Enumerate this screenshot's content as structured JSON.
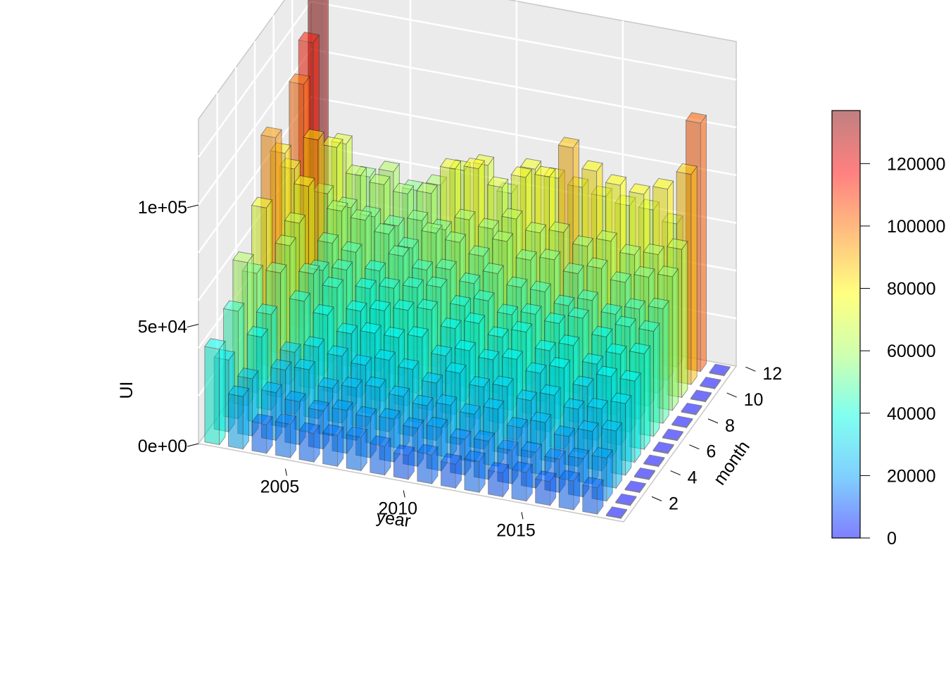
{
  "chart_data": {
    "type": "bar3d",
    "xlabel": "year",
    "ylabel": "month",
    "zlabel": "UI",
    "x_ticks": [
      "2005",
      "2010",
      "2015"
    ],
    "y_ticks": [
      "2",
      "4",
      "6",
      "8",
      "10",
      "12"
    ],
    "z_ticks": [
      "0e+00",
      "5e+04",
      "1e+05"
    ],
    "z_range": [
      0,
      137000
    ],
    "years": [
      2002,
      2003,
      2004,
      2005,
      2006,
      2007,
      2008,
      2009,
      2010,
      2011,
      2012,
      2013,
      2014,
      2015,
      2016,
      2017,
      2018,
      2019
    ],
    "months": [
      1,
      2,
      3,
      4,
      5,
      6,
      7,
      8,
      9,
      10,
      11,
      12
    ],
    "values": [
      [
        40000,
        30000,
        45000,
        60000,
        50000,
        72000,
        96000,
        84000,
        72000,
        102000,
        114000,
        136000
      ],
      [
        22000,
        24000,
        36000,
        40000,
        52000,
        58000,
        62000,
        72000,
        86000,
        58000,
        72000,
        68000
      ],
      [
        12000,
        20000,
        24000,
        26000,
        42000,
        48000,
        44000,
        50000,
        58000,
        54000,
        62000,
        56000
      ],
      [
        14000,
        18000,
        26000,
        30000,
        38000,
        44000,
        46000,
        48000,
        56000,
        52000,
        60000,
        60000
      ],
      [
        12000,
        16000,
        20000,
        28000,
        32000,
        36000,
        40000,
        42000,
        52000,
        50000,
        58000,
        54000
      ],
      [
        13000,
        18000,
        22000,
        26000,
        34000,
        38000,
        42000,
        50000,
        48000,
        54000,
        60000,
        58000
      ],
      [
        14000,
        17000,
        24000,
        30000,
        34000,
        40000,
        44000,
        46000,
        56000,
        52000,
        72000,
        66000
      ],
      [
        12000,
        18000,
        22000,
        28000,
        36000,
        42000,
        46000,
        48000,
        54000,
        58000,
        74000,
        70000
      ],
      [
        10000,
        16000,
        20000,
        24000,
        30000,
        36000,
        40000,
        44000,
        50000,
        56000,
        68000,
        60000
      ],
      [
        12000,
        18000,
        22000,
        30000,
        34000,
        40000,
        44000,
        50000,
        58000,
        62000,
        74000,
        72000
      ],
      [
        10000,
        15000,
        20000,
        26000,
        32000,
        36000,
        40000,
        46000,
        52000,
        58000,
        76000,
        70000
      ],
      [
        13000,
        16000,
        24000,
        28000,
        34000,
        40000,
        42000,
        46000,
        54000,
        60000,
        90000,
        68000
      ],
      [
        10000,
        14000,
        18000,
        24000,
        30000,
        34000,
        40000,
        42000,
        50000,
        56000,
        82000,
        66000
      ],
      [
        12000,
        15000,
        22000,
        28000,
        34000,
        38000,
        44000,
        46000,
        54000,
        60000,
        78000,
        64000
      ],
      [
        10000,
        14000,
        18000,
        24000,
        28000,
        32000,
        38000,
        42000,
        50000,
        56000,
        76000,
        64000
      ],
      [
        12000,
        16000,
        22000,
        26000,
        34000,
        38000,
        44000,
        46000,
        54000,
        58000,
        80000,
        60000
      ],
      [
        11000,
        18000,
        24000,
        30000,
        34000,
        40000,
        44000,
        48000,
        56000,
        62000,
        88000,
        104000
      ],
      [
        0,
        0,
        0,
        0,
        0,
        0,
        0,
        0,
        0,
        0,
        0,
        0
      ]
    ],
    "colorbar": {
      "ticks": [
        "0",
        "20000",
        "40000",
        "60000",
        "80000",
        "100000",
        "120000"
      ],
      "range": [
        0,
        137000
      ],
      "colors": [
        "#0000ff",
        "#00a0ff",
        "#00ffe0",
        "#a0ff60",
        "#ffff00",
        "#ff8000",
        "#ff0000",
        "#800000"
      ]
    }
  }
}
